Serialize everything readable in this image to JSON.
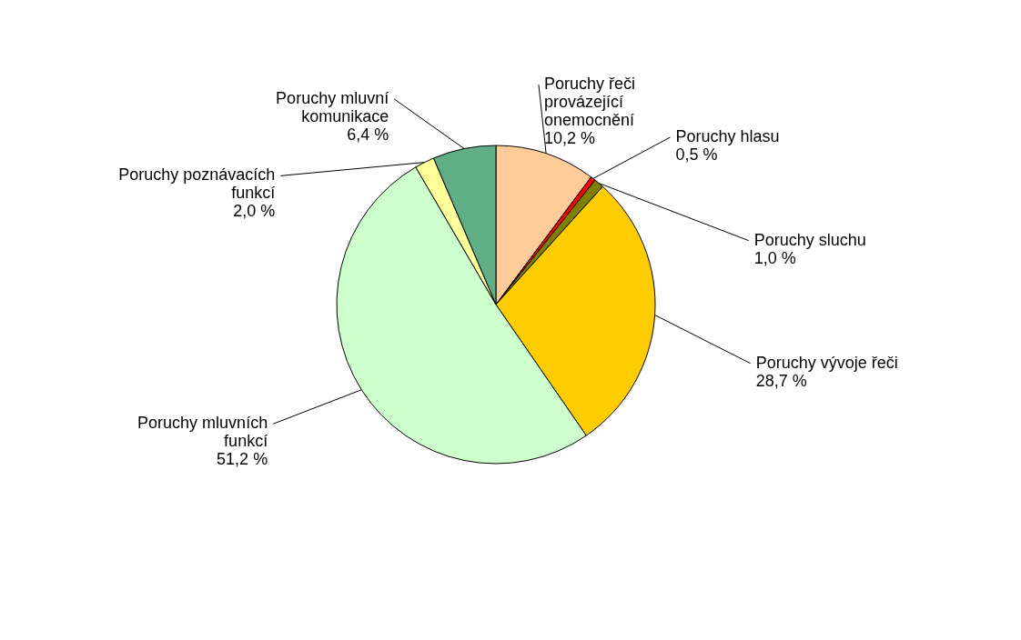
{
  "chart_data": {
    "type": "pie",
    "categories": [
      "Poruchy řeči provázející onemocnění",
      "Poruchy hlasu",
      "Poruchy sluchu",
      "Poruchy vývoje řeči",
      "Poruchy mluvních funkcí",
      "Poruchy poznávacích funkcí",
      "Poruchy mluvní komunikace"
    ],
    "values": [
      10.2,
      0.5,
      1.0,
      28.7,
      51.2,
      2.0,
      6.4
    ],
    "value_labels": [
      "10,2 %",
      "0,5 %",
      "1,0 %",
      "28,7 %",
      "51,2 %",
      "2,0 %",
      "6,4 %"
    ],
    "colors": [
      "#ffcc99",
      "#ff0000",
      "#808000",
      "#ffcc00",
      "#ccffcc",
      "#ffff99",
      "#5fae85"
    ],
    "legend": false
  }
}
